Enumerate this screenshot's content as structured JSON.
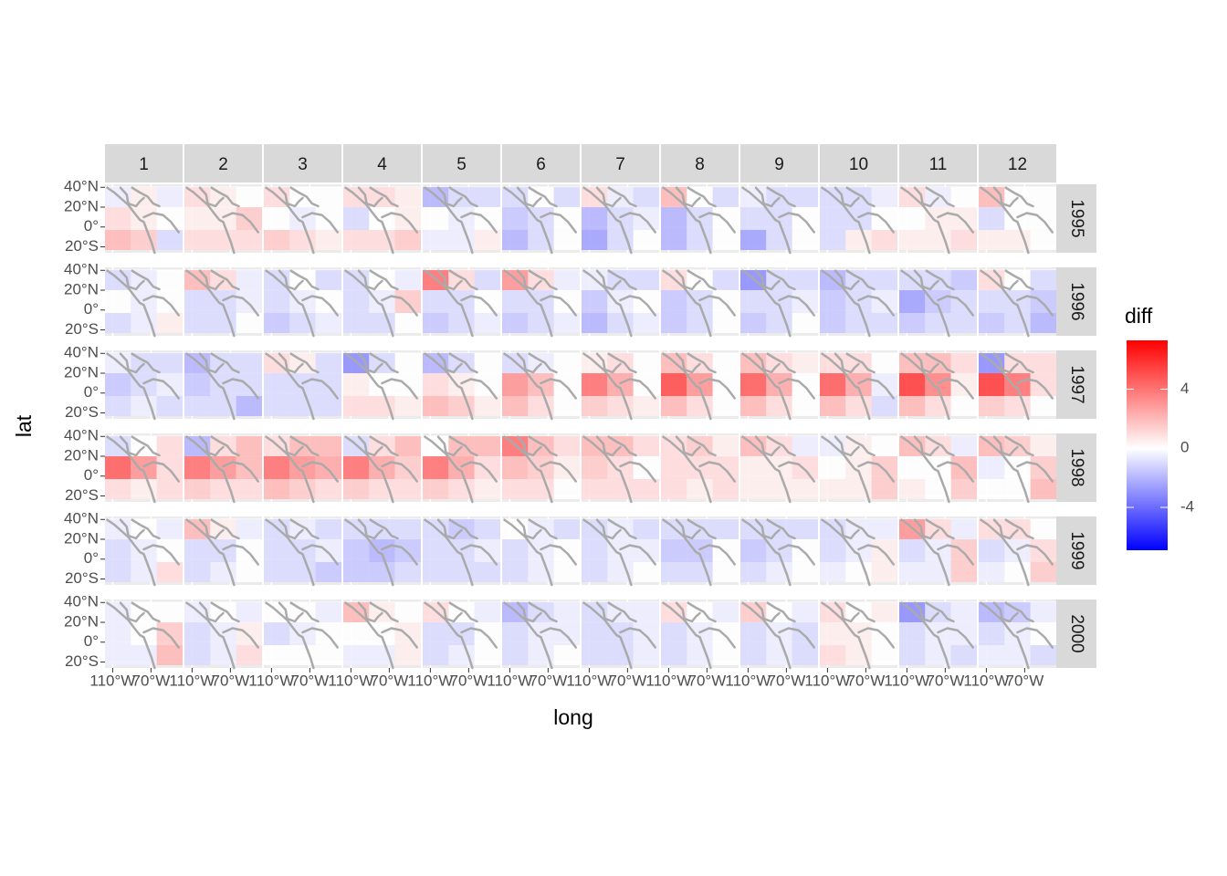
{
  "chart_data": {
    "type": "facet_heatmap",
    "x_label": "long",
    "y_label": "lat",
    "legend_title": "diff",
    "col_facets": [
      "1",
      "2",
      "3",
      "4",
      "5",
      "6",
      "7",
      "8",
      "9",
      "10",
      "11",
      "12"
    ],
    "row_facets": [
      "1995",
      "1996",
      "1997",
      "1998",
      "1999",
      "2000"
    ],
    "xlim": [
      -118,
      -37
    ],
    "ylim": [
      -26,
      43
    ],
    "xticks": [
      {
        "value": -110,
        "label": "110°W"
      },
      {
        "value": -70,
        "label": "70°W"
      }
    ],
    "yticks": [
      {
        "value": 40,
        "label": "40°N"
      },
      {
        "value": 20,
        "label": "20°N"
      },
      {
        "value": 0,
        "label": "0°"
      },
      {
        "value": -20,
        "label": "20°S"
      }
    ],
    "x": [
      -104.5,
      -77.5,
      -50.5
    ],
    "y": [
      31.5,
      8.5,
      -14.5
    ],
    "colorlim": [
      -6.9,
      7.3
    ],
    "colorticks": [
      -4,
      0,
      4
    ],
    "low_color": "#0000ff",
    "mid_color": "#ffffff",
    "high_color": "#ff0000",
    "coast_color": "#aaaaaa",
    "values": [
      [
        [
          -0.5,
          0.5,
          -0.5,
          1,
          0.5,
          0,
          2,
          1.5,
          -1
        ],
        [
          1,
          0.5,
          0,
          0.5,
          0.5,
          1.5,
          1,
          1,
          1
        ],
        [
          1,
          0,
          0,
          0,
          -0.5,
          0,
          1.5,
          1,
          0.5
        ],
        [
          1,
          1,
          0.5,
          -1,
          0,
          0.5,
          1,
          1,
          1.5
        ],
        [
          -2,
          -1,
          -1,
          0,
          -0.5,
          0,
          -0.5,
          -0.5,
          0.5
        ],
        [
          -1,
          0,
          -1,
          -1.5,
          -1,
          0,
          -2,
          -1,
          0
        ],
        [
          1,
          -0.5,
          -1,
          -2,
          -1,
          -0.5,
          -2.5,
          -1,
          0
        ],
        [
          2,
          0,
          -1,
          -2,
          -1,
          0,
          -2,
          -1,
          0
        ],
        [
          -0.5,
          -1,
          -1,
          -1,
          -1,
          0,
          -2.5,
          -1,
          0
        ],
        [
          -1,
          -1,
          -0.5,
          -1,
          -1,
          0,
          -1,
          0.5,
          1
        ],
        [
          1,
          -0.5,
          0,
          0,
          0.5,
          0.5,
          0.5,
          0.5,
          1
        ],
        [
          2,
          0,
          0,
          -1,
          0,
          0,
          0.5,
          0.5,
          0
        ]
      ],
      [
        [
          -1,
          -0.5,
          0,
          0,
          -0.5,
          0,
          -1,
          -0.5,
          0.5
        ],
        [
          2,
          1,
          -0.5,
          -1,
          -1,
          -0.5,
          -1,
          -1,
          0
        ],
        [
          -1,
          0,
          -1,
          -1,
          -0.5,
          0,
          -1.5,
          -1,
          -0.5
        ],
        [
          -1,
          0,
          -0.5,
          -1,
          -0.5,
          1.5,
          -1,
          -1,
          0
        ],
        [
          4,
          1,
          -1,
          -1,
          -1,
          0,
          -1.5,
          -1,
          -0.5
        ],
        [
          3,
          1,
          -0.5,
          -1,
          -1,
          0,
          -1.5,
          -1,
          -0.5
        ],
        [
          -0.5,
          -1,
          -1,
          -1.5,
          -0.5,
          0,
          -2,
          -1,
          -0.5
        ],
        [
          1,
          0,
          -1,
          -1.5,
          -1,
          0,
          -1.5,
          -1,
          0
        ],
        [
          -3,
          -1,
          -1,
          -1,
          -1,
          -0.5,
          -1.5,
          -1,
          0
        ],
        [
          -2,
          -1,
          -1,
          -1.5,
          -1,
          -0.5,
          -1.5,
          -1,
          -1
        ],
        [
          -1,
          -1,
          -1.5,
          -2.5,
          -1.5,
          -1,
          -1.5,
          -1,
          -1
        ],
        [
          1,
          0,
          -1,
          -1,
          -1,
          -1.5,
          -1.5,
          -1,
          -2
        ]
      ],
      [
        [
          -0.5,
          -1,
          -1,
          -1.5,
          -1,
          -0.5,
          -1,
          -0.5,
          -1
        ],
        [
          -2,
          -1,
          -1,
          -1.5,
          -1,
          -1,
          -1,
          -1,
          -2
        ],
        [
          1,
          0.5,
          -1,
          -1,
          -1,
          -1,
          -1,
          -1,
          -1
        ],
        [
          -3,
          -1,
          0,
          0.5,
          0,
          0,
          1,
          1,
          0.5
        ],
        [
          -2,
          -1,
          0,
          1,
          0.5,
          0,
          2,
          1.5,
          0.5
        ],
        [
          -1,
          -0.5,
          0,
          3,
          2,
          0,
          2,
          1,
          0
        ],
        [
          0.5,
          1,
          0,
          4,
          2.5,
          0,
          1.5,
          1,
          0.5
        ],
        [
          2,
          1,
          0,
          5,
          3,
          0,
          2,
          1,
          0
        ],
        [
          2,
          1,
          0.5,
          4.5,
          2.5,
          0,
          2,
          1,
          0
        ],
        [
          1,
          1,
          0,
          4.5,
          2.5,
          -0.5,
          2,
          1,
          -1
        ],
        [
          2,
          2,
          1,
          5.5,
          3.5,
          0.5,
          2,
          1,
          0
        ],
        [
          -3,
          1,
          1,
          5.5,
          4,
          1,
          1.5,
          1,
          0
        ]
      ],
      [
        [
          -1,
          0,
          1,
          4.5,
          3,
          1,
          1,
          0.5,
          1
        ],
        [
          -2,
          1,
          2,
          4,
          3,
          2,
          1.5,
          1,
          1
        ],
        [
          1,
          2,
          2,
          4,
          3,
          2.5,
          2,
          1.5,
          1
        ],
        [
          -1,
          1,
          2,
          4,
          2.5,
          1.5,
          1.5,
          1,
          1
        ],
        [
          0,
          2,
          2,
          4,
          2.5,
          1,
          1.5,
          1,
          0.5
        ],
        [
          4,
          2,
          1,
          2,
          1.5,
          0.5,
          1,
          1,
          0
        ],
        [
          2,
          2,
          1,
          1.5,
          1,
          0,
          1,
          1,
          1
        ],
        [
          1,
          1.5,
          0.5,
          1,
          1,
          1,
          1,
          0.5,
          1
        ],
        [
          2,
          1,
          -0.5,
          0.5,
          0.5,
          1,
          0.5,
          0.5,
          0.5
        ],
        [
          -0.5,
          0.5,
          0,
          0,
          0.5,
          1.5,
          0.5,
          0.5,
          1.5
        ],
        [
          2,
          1,
          -0.5,
          0,
          0,
          2,
          0.5,
          0,
          1.5
        ],
        [
          2,
          1.5,
          0.5,
          -0.5,
          0,
          1.5,
          0,
          0,
          2
        ]
      ],
      [
        [
          -0.5,
          0,
          -0.5,
          -1,
          -0.5,
          0,
          -1,
          -0.5,
          1
        ],
        [
          2,
          0.5,
          -0.5,
          -1,
          -1,
          0,
          -1,
          -0.5,
          0
        ],
        [
          -1,
          -0.5,
          -1,
          -1,
          -1,
          -0.5,
          -1,
          -1,
          -1.5
        ],
        [
          -1,
          -1,
          -1,
          -1.5,
          -2,
          -1.5,
          -1.5,
          -1.5,
          -1
        ],
        [
          -1,
          -1.5,
          -1,
          -1,
          -1,
          -0.5,
          -1,
          -1,
          -1
        ],
        [
          0,
          -0.5,
          -1,
          -1,
          -0.5,
          0,
          -1,
          -0.5,
          0
        ],
        [
          -1,
          -0.5,
          -1,
          -1,
          -0.5,
          -0.5,
          -1,
          -0.5,
          0
        ],
        [
          -1,
          -1,
          -1,
          -1.5,
          -1.5,
          0,
          -1,
          -1,
          0
        ],
        [
          -1,
          -1,
          -1,
          -1.5,
          -1,
          0,
          -1,
          -0.5,
          0
        ],
        [
          -1,
          -0.5,
          -0.5,
          -1,
          -0.5,
          0.5,
          -0.5,
          0,
          0.5
        ],
        [
          3,
          1,
          -0.5,
          -1,
          -0.5,
          1.5,
          -0.5,
          -0.5,
          1.5
        ],
        [
          1,
          1,
          0,
          -1,
          -0.5,
          1,
          -0.5,
          0,
          1.5
        ]
      ],
      [
        [
          -0.5,
          0,
          0,
          -0.5,
          0,
          1.5,
          -0.5,
          -0.5,
          2
        ],
        [
          -0.5,
          0,
          -0.5,
          -1,
          -0.5,
          0.5,
          -1,
          -0.5,
          1
        ],
        [
          0,
          0,
          -0.5,
          -1,
          -0.5,
          0,
          0,
          0,
          0
        ],
        [
          2,
          0.5,
          0,
          0,
          0,
          0.5,
          -0.5,
          -0.5,
          0.5
        ],
        [
          1,
          0,
          -0.5,
          -1,
          -1,
          0,
          -1,
          -0.5,
          0
        ],
        [
          -2,
          -1,
          -0.5,
          -1,
          -0.5,
          -0.5,
          -1,
          -0.5,
          0
        ],
        [
          -1,
          -0.5,
          -0.5,
          -1,
          -1,
          -0.5,
          -1,
          -1,
          -0.5
        ],
        [
          1,
          0,
          -0.5,
          -1,
          -0.5,
          0,
          -1,
          -0.5,
          0
        ],
        [
          1.5,
          0,
          -0.5,
          -1,
          -0.5,
          -1,
          -1,
          -0.5,
          -1
        ],
        [
          1,
          0,
          0.5,
          0.5,
          0.5,
          0,
          1,
          0.5,
          0
        ],
        [
          -3,
          -1,
          -0.5,
          -1,
          -0.5,
          -0.5,
          -1,
          -0.5,
          -1
        ],
        [
          -2,
          -1.5,
          -0.5,
          -1,
          -0.5,
          0,
          -0.5,
          -0.5,
          -1
        ]
      ]
    ]
  }
}
